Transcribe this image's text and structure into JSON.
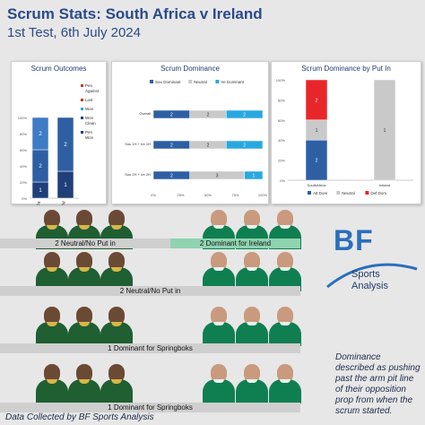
{
  "header": {
    "title": "Scrum Stats: South Africa v Ireland",
    "subtitle": "1st Test, 6th July 2024"
  },
  "colors": {
    "very_dark_blue": "#1f3f7a",
    "dark_blue": "#2e5fa3",
    "mid_blue": "#3e7cc4",
    "light_blue": "#29a8e0",
    "grey": "#c9c9c9",
    "red": "#e8262a",
    "ireland_green": "#8fd3b0"
  },
  "chart_data": [
    {
      "type": "bar",
      "title": "Scrum Outcomes",
      "stacked": "percent",
      "categories": [
        "SouthAfrica",
        "Ireland"
      ],
      "yticks": [
        "0%",
        "20%",
        "40%",
        "60%",
        "80%",
        "100%"
      ],
      "series": [
        {
          "name": "Pen Won",
          "color": "#1f3f7a",
          "values": [
            1,
            1
          ]
        },
        {
          "name": "Won Clean",
          "color": "#2e5fa3",
          "values": [
            2,
            2
          ]
        },
        {
          "name": "Won",
          "color": "#3e7cc4",
          "values": [
            2,
            0
          ]
        },
        {
          "name": "Lost",
          "color": "#9b9b9b",
          "values": [
            0,
            0
          ]
        },
        {
          "name": "Pen Against",
          "color": "#c0392b",
          "values": [
            0,
            0
          ]
        }
      ],
      "data_labels": [
        [
          "1",
          "2",
          "2"
        ],
        [
          "1",
          "2"
        ]
      ],
      "legend": [
        {
          "label": "Pen Against",
          "color": "#c0392b"
        },
        {
          "label": "Lost",
          "color": "#c0392b"
        },
        {
          "label": "Won",
          "color": "#29a8e0"
        },
        {
          "label": "Won Clean",
          "color": "#1f3f7a"
        },
        {
          "label": "Pen Won",
          "color": "#1f3f7a"
        }
      ]
    },
    {
      "type": "bar",
      "orientation": "horizontal",
      "stacked": "percent",
      "title": "Scrum Dominance",
      "categories": [
        "Overall",
        "Sou 1H + Ire 1H",
        "Sou 2H + Ire 2H"
      ],
      "xticks": [
        "0%",
        "25%",
        "50%",
        "75%",
        "100%"
      ],
      "series": [
        {
          "name": "Sou Dominant",
          "color": "#2e5fa3",
          "values": [
            2,
            2,
            2
          ]
        },
        {
          "name": "Neutral",
          "color": "#c9c9c9",
          "values": [
            2,
            2,
            3
          ]
        },
        {
          "name": "Ire Dominant",
          "color": "#29a8e0",
          "values": [
            2,
            2,
            1
          ]
        }
      ]
    },
    {
      "type": "bar",
      "stacked": "percent",
      "title": "Scrum Dominance by Put In",
      "categories": [
        "SouthAfrica",
        "Ireland"
      ],
      "yticks": [
        "0%",
        "20%",
        "40%",
        "60%",
        "80%",
        "100%"
      ],
      "series": [
        {
          "name": "Att Dom",
          "color": "#2e5fa3",
          "values": [
            2,
            0
          ]
        },
        {
          "name": "Neutral",
          "color": "#c9c9c9",
          "values": [
            1,
            1
          ]
        },
        {
          "name": "Def Dom",
          "color": "#e8262a",
          "values": [
            2,
            0
          ]
        }
      ]
    }
  ],
  "scrums": [
    {
      "left_label": "2 Neutral/No Put in",
      "right_label": "2 Dominant for Ireland",
      "split": true
    },
    {
      "left_label": "2 Neutral/No Put in",
      "split": false
    },
    {
      "left_label": "1 Dominant for Springboks",
      "split": false
    },
    {
      "left_label": "1 Dominant for Springboks",
      "split": false
    }
  ],
  "logo": {
    "bf": "BF",
    "sports": "Sports",
    "analysis": "Analysis"
  },
  "note": "Dominance described as pushing past the arm pit line of their opposition prop from when the scrum started.",
  "credit": "Data Collected by BF Sports Analysis"
}
